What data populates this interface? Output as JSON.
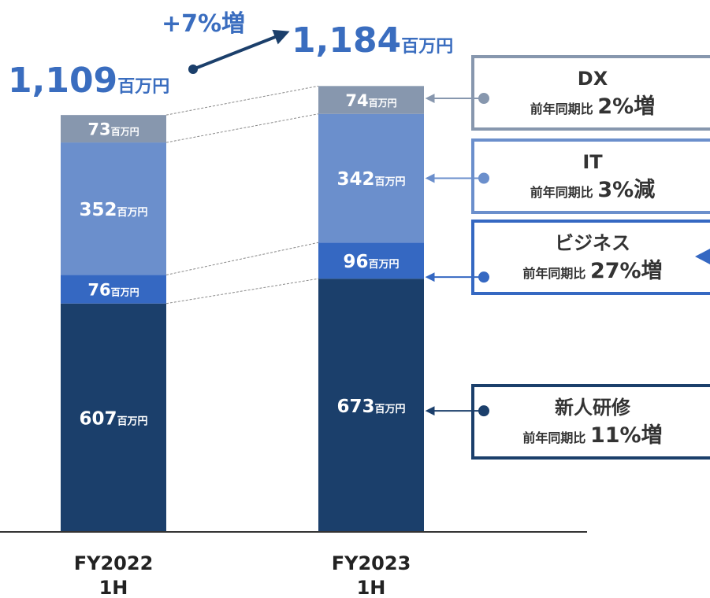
{
  "chart_data": {
    "type": "bar",
    "stacked": true,
    "unit": "百万円",
    "categories": [
      "FY2022\n1H",
      "FY2023\n1H"
    ],
    "series": [
      {
        "name": "新人研修",
        "values": [
          607,
          673
        ],
        "color": "#1b3f6b"
      },
      {
        "name": "ビジネス",
        "values": [
          76,
          96
        ],
        "color": "#3568c2"
      },
      {
        "name": "IT",
        "values": [
          352,
          342
        ],
        "color": "#6b8fcc"
      },
      {
        "name": "DX",
        "values": [
          73,
          74
        ],
        "color": "#8797ae"
      }
    ],
    "totals": [
      "1,109",
      "1,184"
    ],
    "growth_label": "+7%増",
    "callouts": [
      {
        "series": "DX",
        "title": "DX",
        "caption": "前年同期比",
        "change": "2%増",
        "border": "#8797ae"
      },
      {
        "series": "IT",
        "title": "IT",
        "caption": "前年同期比",
        "change": "3%減",
        "border": "#6b8fcc"
      },
      {
        "series": "ビジネス",
        "title": "ビジネス",
        "caption": "前年同期比",
        "change": "27%増",
        "border": "#3568c2"
      },
      {
        "series": "新人研修",
        "title": "新人研修",
        "caption": "前年同期比",
        "change": "11%増",
        "border": "#1b3f6b"
      }
    ],
    "xlabel": "",
    "ylabel": "",
    "ylim": [
      0,
      1184
    ],
    "grid": false,
    "legend": "none"
  }
}
